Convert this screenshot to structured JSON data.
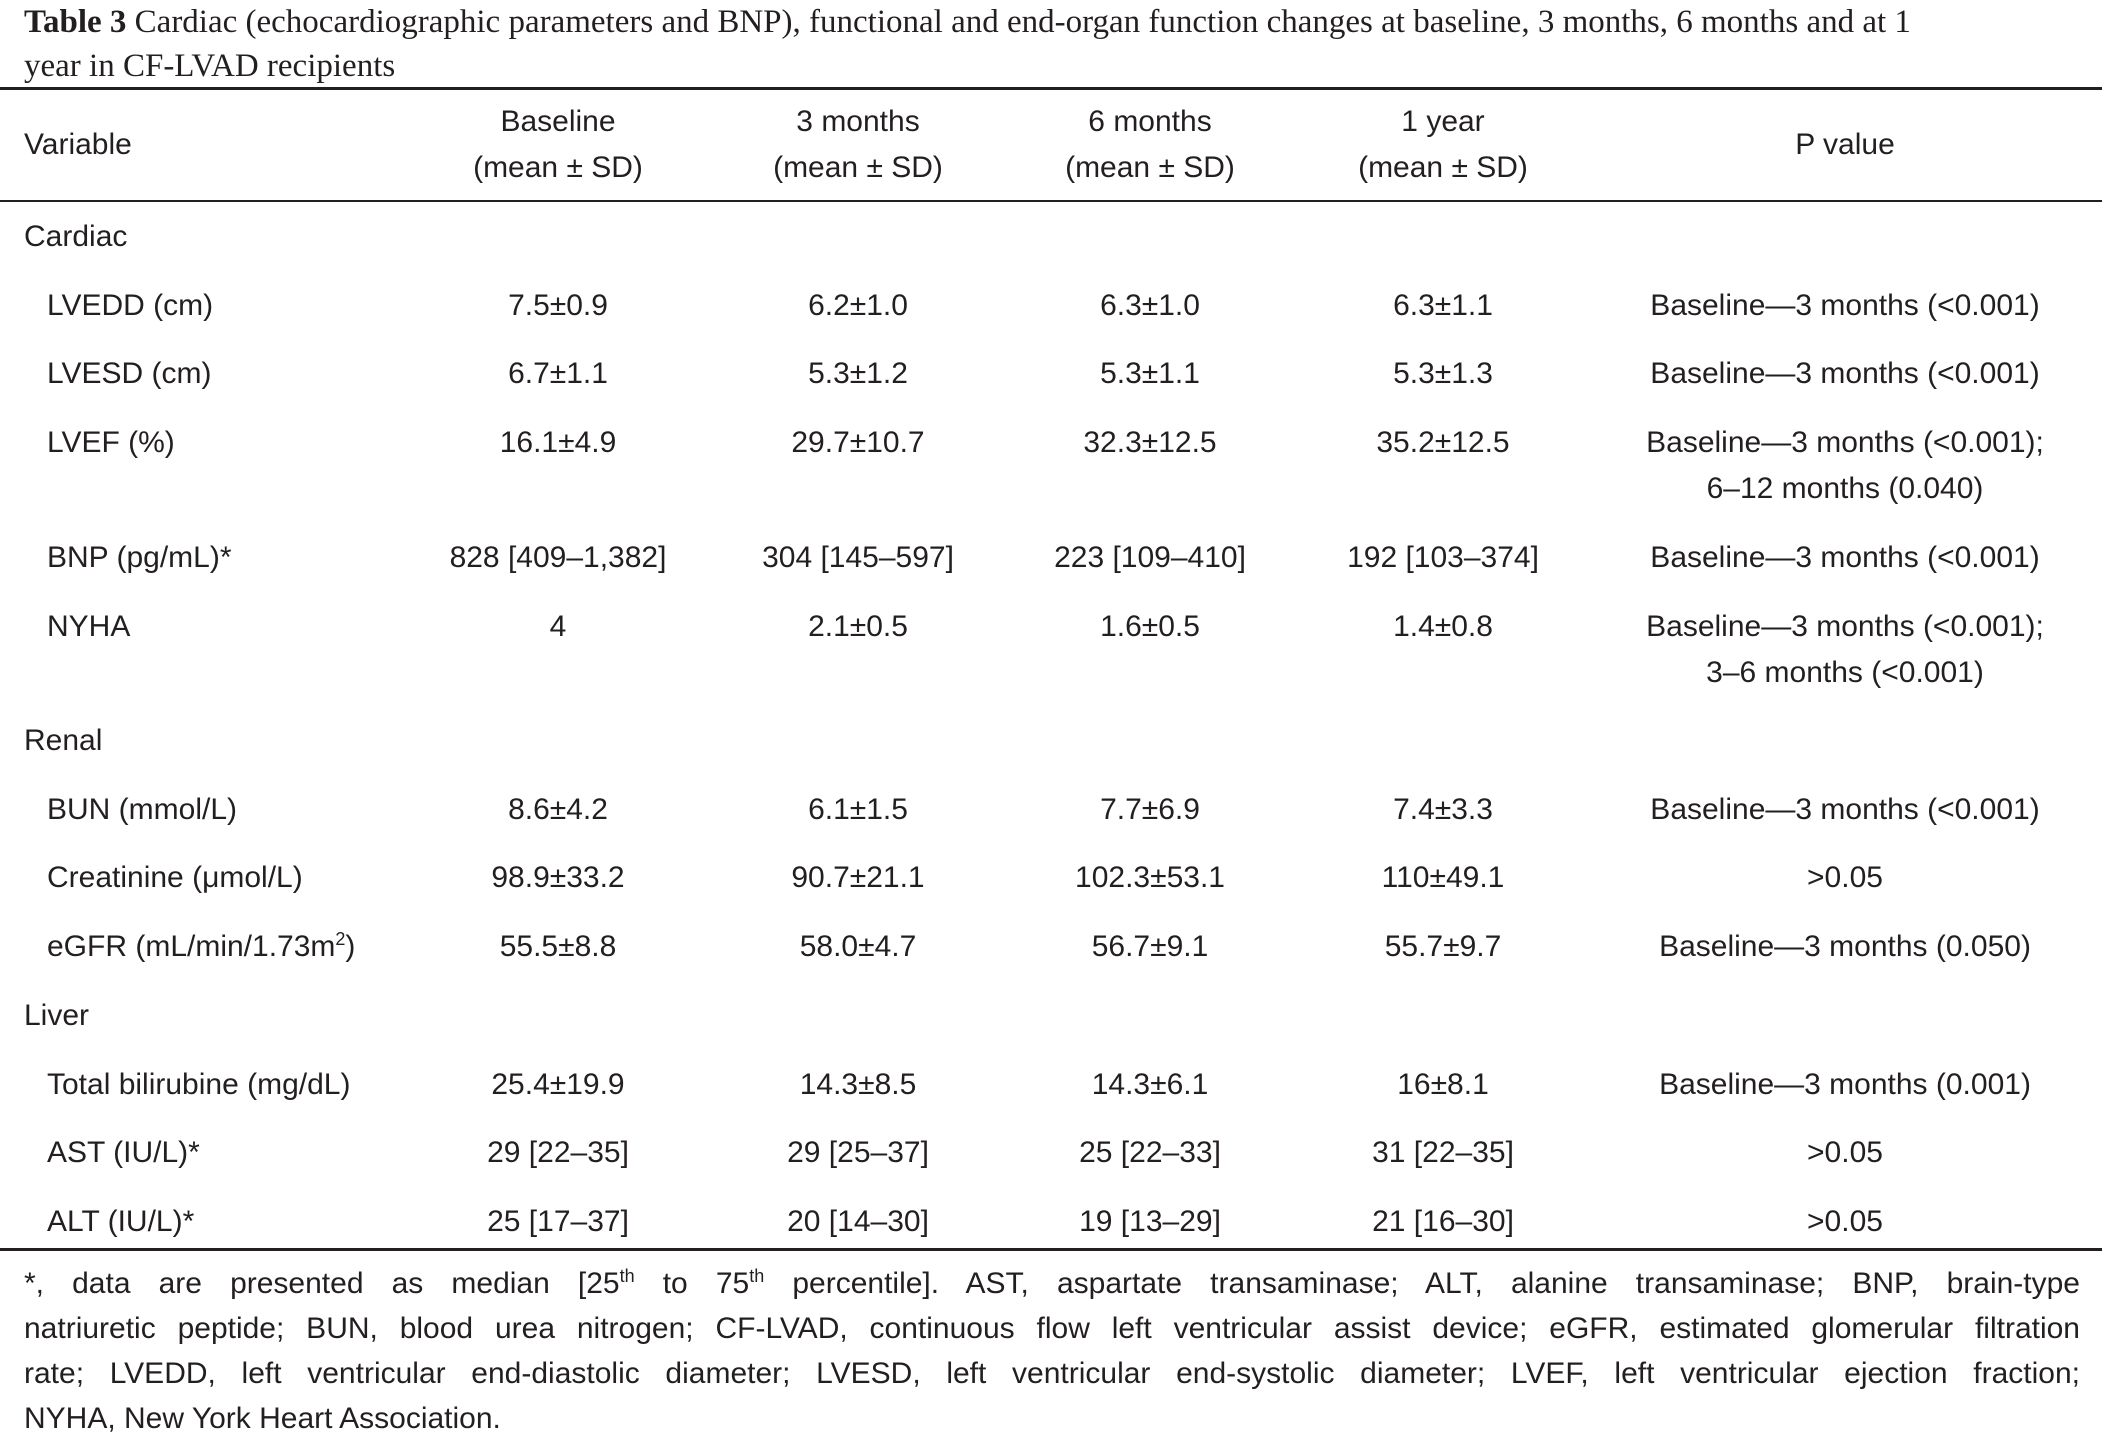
{
  "caption": {
    "label": "Table 3",
    "text_line1": "Cardiac (echocardiographic parameters and BNP), functional and end-organ function changes at baseline, 3 months, 6 months and at 1",
    "text_line2": "year in CF-LVAD recipients"
  },
  "header": {
    "variable": "Variable",
    "baseline_l1": "Baseline",
    "baseline_l2": "(mean ± SD)",
    "m3_l1": "3 months",
    "m3_l2": "(mean ± SD)",
    "m6_l1": "6 months",
    "m6_l2": "(mean ± SD)",
    "y1_l1": "1 year",
    "y1_l2": "(mean ± SD)",
    "pvalue": "P value"
  },
  "sections": {
    "cardiac": "Cardiac",
    "renal": "Renal",
    "liver": "Liver"
  },
  "rows": {
    "lvedd": {
      "label": "LVEDD (cm)",
      "baseline": "7.5±0.9",
      "m3": "6.2±1.0",
      "m6": "6.3±1.0",
      "y1": "6.3±1.1",
      "p1": "Baseline—3 months (<0.001)"
    },
    "lvesd": {
      "label": "LVESD (cm)",
      "baseline": "6.7±1.1",
      "m3": "5.3±1.2",
      "m6": "5.3±1.1",
      "y1": "5.3±1.3",
      "p1": "Baseline—3 months (<0.001)"
    },
    "lvef": {
      "label": "LVEF (%)",
      "baseline": "16.1±4.9",
      "m3": "29.7±10.7",
      "m6": "32.3±12.5",
      "y1": "35.2±12.5",
      "p1": "Baseline—3 months (<0.001);",
      "p2": "6–12 months (0.040)"
    },
    "bnp": {
      "label": "BNP (pg/mL)*",
      "baseline": "828 [409–1,382]",
      "m3": "304 [145–597]",
      "m6": "223 [109–410]",
      "y1": "192 [103–374]",
      "p1": "Baseline—3 months (<0.001)"
    },
    "nyha": {
      "label": "NYHA",
      "baseline": "4",
      "m3": "2.1±0.5",
      "m6": "1.6±0.5",
      "y1": "1.4±0.8",
      "p1": "Baseline—3 months (<0.001);",
      "p2": "3–6 months (<0.001)"
    },
    "bun": {
      "label": "BUN (mmol/L)",
      "baseline": "8.6±4.2",
      "m3": "6.1±1.5",
      "m6": "7.7±6.9",
      "y1": "7.4±3.3",
      "p1": "Baseline—3 months (<0.001)"
    },
    "creatinine": {
      "label": "Creatinine (μmol/L)",
      "baseline": "98.9±33.2",
      "m3": "90.7±21.1",
      "m6": "102.3±53.1",
      "y1": "110±49.1",
      "p1": ">0.05"
    },
    "egfr": {
      "label_pre": "eGFR (mL/min/1.73m",
      "label_sup": "2",
      "label_post": ")",
      "baseline": "55.5±8.8",
      "m3": "58.0±4.7",
      "m6": "56.7±9.1",
      "y1": "55.7±9.7",
      "p1": "Baseline—3 months (0.050)"
    },
    "bilirubine": {
      "label": "Total bilirubine (mg/dL)",
      "baseline": "25.4±19.9",
      "m3": "14.3±8.5",
      "m6": "14.3±6.1",
      "y1": "16±8.1",
      "p1": "Baseline—3 months (0.001)"
    },
    "ast": {
      "label": "AST (IU/L)*",
      "baseline": "29 [22–35]",
      "m3": "29 [25–37]",
      "m6": "25 [22–33]",
      "y1": "31 [22–35]",
      "p1": ">0.05"
    },
    "alt": {
      "label": "ALT (IU/L)*",
      "baseline": "25 [17–37]",
      "m3": "20 [14–30]",
      "m6": "19 [13–29]",
      "y1": "21 [16–30]",
      "p1": ">0.05"
    }
  },
  "footnote": {
    "l1_a": "*, data are presented as median [25",
    "l1_sup1": "th",
    "l1_b": " to 75",
    "l1_sup2": "th",
    "l1_c": " percentile]. AST, aspartate transaminase; ALT, alanine transaminase; BNP, brain-type",
    "l2": "natriuretic peptide; BUN, blood urea nitrogen; CF-LVAD, continuous flow left ventricular assist device; eGFR, estimated glomerular filtration",
    "l3": "rate; LVEDD, left ventricular end-diastolic diameter; LVESD, left ventricular end-systolic diameter; LVEF, left ventricular ejection fraction;",
    "l4": "NYHA, New York Heart Association."
  }
}
